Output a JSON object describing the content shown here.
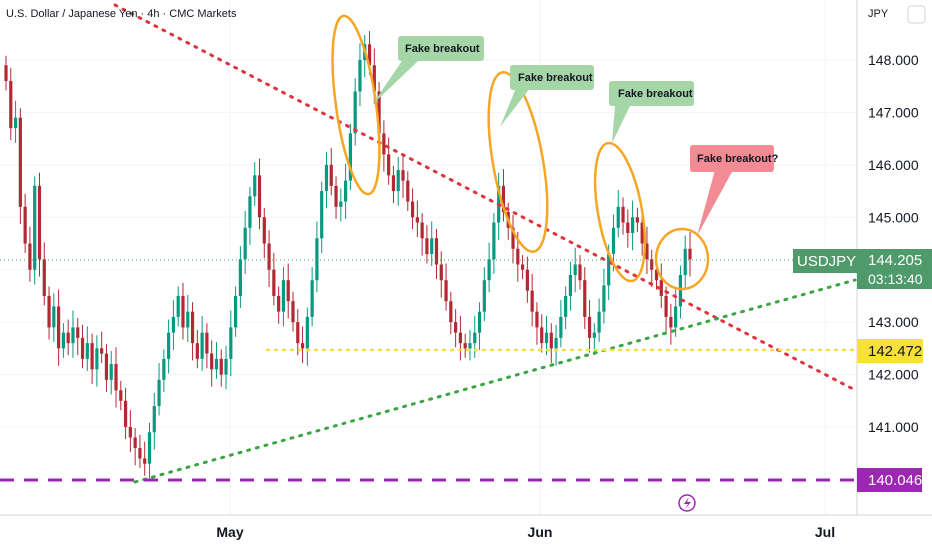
{
  "header": {
    "title": "U.S. Dollar / Japanese Yen · 4h · CMC Markets"
  },
  "axis": {
    "currency": "JPY",
    "y_ticks": [
      "148.000",
      "147.000",
      "146.000",
      "145.000",
      "143.000",
      "142.000",
      "141.000"
    ],
    "x_ticks": [
      "May",
      "Jun",
      "Jul"
    ]
  },
  "price_tag": {
    "symbol": "USDJPY",
    "price": "144.205",
    "countdown": "03:13:40"
  },
  "levels": {
    "support_label": "142.472",
    "low_label": "140.046"
  },
  "annotations": [
    {
      "text": "Fake breakout"
    },
    {
      "text": "Fake breakout"
    },
    {
      "text": "Fake breakout"
    },
    {
      "text": "Fake breakout?"
    }
  ],
  "colors": {
    "up": "#089981",
    "down": "#b22833",
    "downtrend": "#e0323f",
    "uptrend": "#3aa642",
    "support": "#f5e13a",
    "low": "#9c27b0",
    "highlight": "#f5a623",
    "bubble_green": "#a5d6a7",
    "bubble_red": "#f28b93",
    "price_tag": "#4e9a6a"
  },
  "chart_data": {
    "type": "candlestick",
    "symbol": "USDJPY",
    "timeframe": "4h",
    "ylim": [
      139.5,
      149.0
    ],
    "horizontal_levels": [
      142.472,
      140.046
    ],
    "last_price": 144.205,
    "series_close": [
      147.6,
      146.7,
      146.9,
      145.2,
      144.5,
      144.0,
      145.6,
      144.2,
      143.5,
      142.9,
      143.3,
      142.5,
      142.8,
      142.6,
      142.9,
      142.7,
      142.3,
      142.6,
      142.1,
      142.5,
      142.4,
      141.9,
      142.2,
      141.7,
      141.5,
      141.0,
      140.8,
      140.6,
      140.4,
      140.3,
      140.9,
      141.4,
      141.9,
      142.3,
      142.8,
      143.1,
      143.5,
      142.9,
      143.2,
      142.6,
      142.3,
      142.8,
      142.4,
      142.1,
      142.3,
      142.0,
      142.3,
      142.9,
      143.5,
      144.2,
      144.8,
      145.4,
      145.8,
      145.0,
      144.5,
      144.0,
      143.5,
      143.2,
      143.8,
      143.4,
      143.0,
      142.6,
      142.5,
      143.1,
      143.8,
      144.6,
      145.5,
      146.0,
      145.6,
      145.2,
      145.3,
      145.7,
      146.6,
      147.4,
      148.0,
      148.3,
      147.9,
      147.4,
      146.6,
      146.2,
      145.8,
      145.5,
      145.9,
      145.7,
      145.3,
      145.0,
      144.9,
      144.6,
      144.3,
      144.6,
      144.1,
      143.8,
      143.4,
      143.0,
      142.8,
      142.6,
      142.5,
      142.6,
      142.8,
      143.2,
      143.8,
      144.2,
      144.9,
      145.6,
      145.1,
      144.8,
      144.4,
      144.1,
      144.0,
      143.6,
      143.2,
      142.9,
      142.6,
      142.8,
      142.5,
      142.7,
      143.1,
      143.5,
      143.9,
      144.1,
      143.8,
      143.1,
      142.7,
      142.8,
      143.2,
      143.7,
      144.3,
      144.8,
      145.2,
      144.9,
      144.7,
      145.0,
      144.9,
      144.5,
      144.2,
      144.0,
      143.8,
      143.5,
      143.1,
      142.9,
      143.3,
      143.9,
      144.4,
      144.2
    ]
  }
}
